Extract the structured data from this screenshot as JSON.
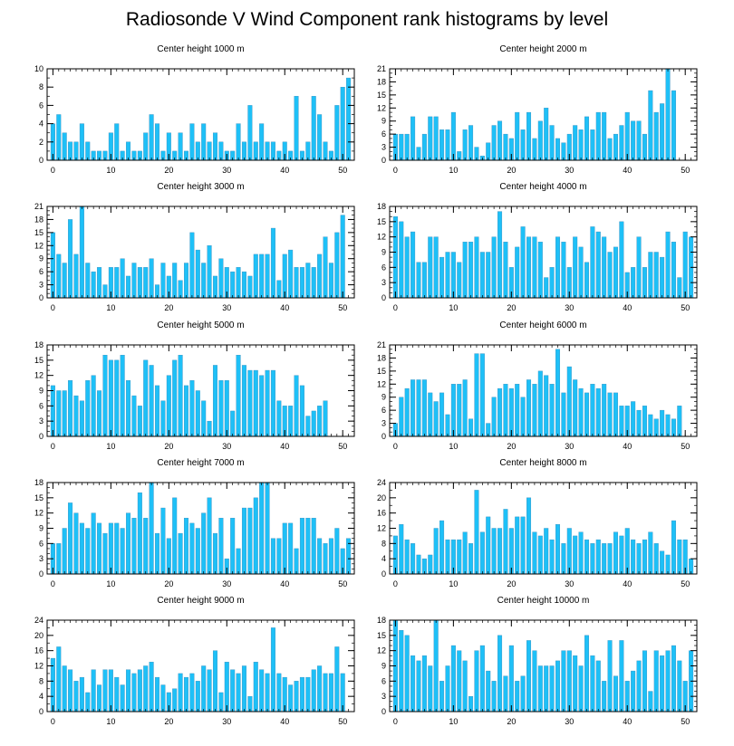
{
  "title": "Radiosonde V Wind Component rank histograms by level",
  "colors": {
    "bar": "#1ec0f7",
    "bar_edge": "#3a8fbf",
    "axis": "#000000"
  },
  "chart_data": [
    {
      "type": "bar",
      "title": "Center height 1000 m",
      "ylim": [
        0,
        10
      ],
      "yticks": [
        0,
        2,
        4,
        6,
        8,
        10
      ],
      "xlim": [
        -1,
        52
      ],
      "xticks": [
        0,
        10,
        20,
        30,
        40,
        50
      ],
      "values": [
        4,
        5,
        3,
        2,
        2,
        4,
        2,
        1,
        1,
        1,
        3,
        4,
        1,
        2,
        1,
        1,
        3,
        5,
        4,
        1,
        3,
        1,
        3,
        1,
        4,
        2,
        4,
        2,
        3,
        2,
        1,
        1,
        4,
        2,
        6,
        2,
        4,
        2,
        2,
        1,
        2,
        1,
        7,
        1,
        2,
        7,
        5,
        2,
        1,
        6,
        8,
        9
      ]
    },
    {
      "type": "bar",
      "title": "Center height 2000 m",
      "ylim": [
        0,
        21
      ],
      "yticks": [
        0,
        3,
        6,
        9,
        12,
        15,
        18,
        21
      ],
      "xlim": [
        -1,
        52
      ],
      "xticks": [
        0,
        10,
        20,
        30,
        40,
        50
      ],
      "values": [
        6,
        6,
        6,
        10,
        3,
        6,
        10,
        10,
        7,
        7,
        11,
        2,
        7,
        8,
        3,
        1,
        4,
        8,
        9,
        6,
        5,
        11,
        7,
        11,
        5,
        9,
        12,
        8,
        5,
        4,
        6,
        8,
        7,
        10,
        7,
        11,
        11,
        5,
        6,
        8,
        11,
        9,
        9,
        6,
        16,
        11,
        13,
        21,
        16
      ]
    },
    {
      "type": "bar",
      "title": "Center height 3000 m",
      "ylim": [
        0,
        21
      ],
      "yticks": [
        0,
        3,
        6,
        9,
        12,
        15,
        18,
        21
      ],
      "xlim": [
        -1,
        52
      ],
      "xticks": [
        0,
        10,
        20,
        30,
        40,
        50
      ],
      "values": [
        15,
        10,
        8,
        18,
        10,
        21,
        8,
        6,
        7,
        3,
        7,
        7,
        9,
        5,
        8,
        7,
        7,
        9,
        3,
        8,
        5,
        8,
        4,
        8,
        15,
        11,
        8,
        12,
        5,
        9,
        7,
        6,
        7,
        6,
        5,
        10,
        10,
        10,
        16,
        4,
        10,
        11,
        7,
        7,
        8,
        7,
        10,
        14,
        8,
        15,
        19
      ]
    },
    {
      "type": "bar",
      "title": "Center height 4000 m",
      "ylim": [
        0,
        18
      ],
      "yticks": [
        0,
        3,
        6,
        9,
        12,
        15,
        18
      ],
      "xlim": [
        -1,
        52
      ],
      "xticks": [
        0,
        10,
        20,
        30,
        40,
        50
      ],
      "values": [
        16,
        15,
        12,
        13,
        7,
        7,
        12,
        12,
        8,
        9,
        9,
        7,
        11,
        11,
        12,
        9,
        9,
        12,
        17,
        11,
        6,
        10,
        14,
        12,
        12,
        11,
        4,
        6,
        12,
        11,
        6,
        12,
        10,
        7,
        14,
        13,
        12,
        9,
        10,
        15,
        5,
        6,
        12,
        6,
        9,
        9,
        8,
        13,
        11,
        4,
        13,
        12
      ]
    },
    {
      "type": "bar",
      "title": "Center height 5000 m",
      "ylim": [
        0,
        18
      ],
      "yticks": [
        0,
        3,
        6,
        9,
        12,
        15,
        18
      ],
      "xlim": [
        -1,
        52
      ],
      "xticks": [
        0,
        10,
        20,
        30,
        40,
        50
      ],
      "values": [
        10,
        9,
        9,
        11,
        8,
        7,
        11,
        12,
        9,
        16,
        15,
        15,
        16,
        11,
        8,
        6,
        15,
        14,
        10,
        7,
        12,
        15,
        16,
        10,
        11,
        9,
        7,
        3,
        14,
        11,
        11,
        5,
        16,
        14,
        13,
        13,
        12,
        13,
        13,
        7,
        6,
        6,
        12,
        10,
        4,
        5,
        6,
        7
      ]
    },
    {
      "type": "bar",
      "title": "Center height 6000 m",
      "ylim": [
        0,
        21
      ],
      "yticks": [
        0,
        3,
        6,
        9,
        12,
        15,
        18,
        21
      ],
      "xlim": [
        -1,
        52
      ],
      "xticks": [
        0,
        10,
        20,
        30,
        40,
        50
      ],
      "values": [
        3,
        9,
        11,
        13,
        13,
        13,
        10,
        8,
        10,
        5,
        12,
        12,
        13,
        4,
        19,
        19,
        3,
        9,
        11,
        12,
        11,
        12,
        9,
        13,
        12,
        15,
        14,
        12,
        20,
        10,
        16,
        13,
        11,
        10,
        12,
        11,
        12,
        10,
        10,
        7,
        7,
        8,
        6,
        7,
        5,
        4,
        6,
        5,
        4,
        7
      ]
    },
    {
      "type": "bar",
      "title": "Center height 7000 m",
      "ylim": [
        0,
        18
      ],
      "yticks": [
        0,
        3,
        6,
        9,
        12,
        15,
        18
      ],
      "xlim": [
        -1,
        52
      ],
      "xticks": [
        0,
        10,
        20,
        30,
        40,
        50
      ],
      "values": [
        6,
        6,
        9,
        14,
        12,
        10,
        9,
        12,
        10,
        8,
        10,
        10,
        9,
        12,
        11,
        16,
        11,
        18,
        8,
        13,
        7,
        15,
        8,
        11,
        10,
        9,
        12,
        15,
        8,
        11,
        3,
        11,
        5,
        13,
        13,
        15,
        18,
        18,
        7,
        7,
        10,
        10,
        5,
        11,
        11,
        11,
        7,
        6,
        7,
        9,
        5,
        7
      ]
    },
    {
      "type": "bar",
      "title": "Center height 8000 m",
      "ylim": [
        0,
        24
      ],
      "yticks": [
        0,
        4,
        8,
        12,
        16,
        20,
        24
      ],
      "xlim": [
        -1,
        52
      ],
      "xticks": [
        0,
        10,
        20,
        30,
        40,
        50
      ],
      "values": [
        10,
        13,
        9,
        8,
        5,
        4,
        5,
        12,
        14,
        9,
        9,
        9,
        11,
        8,
        22,
        11,
        15,
        12,
        12,
        17,
        12,
        15,
        15,
        20,
        11,
        10,
        12,
        9,
        13,
        8,
        12,
        10,
        11,
        9,
        8,
        9,
        8,
        8,
        11,
        10,
        12,
        9,
        8,
        9,
        11,
        8,
        6,
        5,
        14,
        9,
        9,
        4
      ]
    },
    {
      "type": "bar",
      "title": "Center height 9000 m",
      "ylim": [
        0,
        24
      ],
      "yticks": [
        0,
        4,
        8,
        12,
        16,
        20,
        24
      ],
      "xlim": [
        -1,
        52
      ],
      "xticks": [
        0,
        10,
        20,
        30,
        40,
        50
      ],
      "values": [
        14,
        17,
        12,
        11,
        8,
        9,
        5,
        11,
        7,
        11,
        11,
        9,
        7,
        11,
        10,
        11,
        12,
        13,
        9,
        7,
        5,
        6,
        10,
        9,
        10,
        8,
        12,
        11,
        16,
        5,
        13,
        11,
        10,
        12,
        4,
        13,
        11,
        10,
        22,
        10,
        9,
        7,
        8,
        9,
        9,
        11,
        12,
        10,
        10,
        17,
        10
      ]
    },
    {
      "type": "bar",
      "title": "Center height 10000 m",
      "ylim": [
        0,
        18
      ],
      "yticks": [
        0,
        3,
        6,
        9,
        12,
        15,
        18
      ],
      "xlim": [
        -1,
        52
      ],
      "xticks": [
        0,
        10,
        20,
        30,
        40,
        50
      ],
      "values": [
        18,
        16,
        15,
        11,
        10,
        11,
        9,
        18,
        6,
        9,
        13,
        12,
        10,
        3,
        12,
        13,
        8,
        6,
        15,
        7,
        13,
        6,
        7,
        14,
        12,
        9,
        9,
        9,
        10,
        12,
        12,
        11,
        9,
        15,
        11,
        10,
        6,
        14,
        7,
        14,
        6,
        8,
        10,
        12,
        4,
        12,
        11,
        12,
        13,
        10,
        6,
        12
      ]
    }
  ]
}
